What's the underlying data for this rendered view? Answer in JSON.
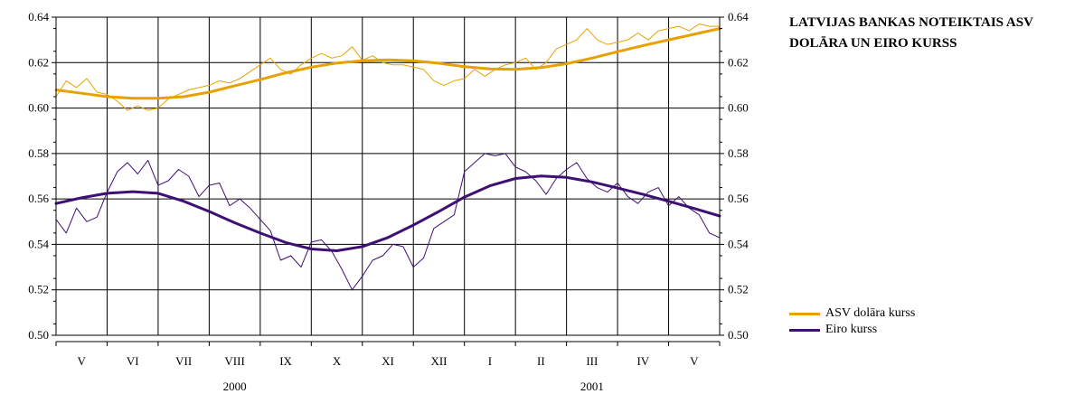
{
  "chart_data": {
    "type": "line",
    "title": "LATVIJAS BANKAS NOTEIKTAIS ASV DOLĀRA UN EIRO KURSS",
    "ylim": [
      0.5,
      0.64
    ],
    "yticks": [
      "0.50",
      "0.52",
      "0.54",
      "0.56",
      "0.58",
      "0.60",
      "0.62",
      "0.64"
    ],
    "y_axis_both_sides": true,
    "grid": true,
    "legend_position": "right",
    "x_month_labels": [
      "V",
      "VI",
      "VII",
      "VIII",
      "IX",
      "X",
      "XI",
      "XII",
      "I",
      "II",
      "III",
      "IV",
      "V"
    ],
    "x_year_labels": [
      {
        "label": "2000",
        "month_index": 3.5
      },
      {
        "label": "2001",
        "month_index": 10.5
      }
    ],
    "x_unit": "month index (0 = start of May 2000)",
    "series": [
      {
        "name": "ASV dolāra kurss",
        "color": "#E8A200",
        "daily_x": [
          0,
          0.2,
          0.4,
          0.6,
          0.8,
          1,
          1.2,
          1.4,
          1.6,
          1.8,
          2,
          2.2,
          2.4,
          2.6,
          2.8,
          3,
          3.2,
          3.4,
          3.6,
          3.8,
          4,
          4.2,
          4.4,
          4.6,
          4.8,
          5,
          5.2,
          5.4,
          5.6,
          5.8,
          6,
          6.2,
          6.4,
          6.6,
          6.8,
          7,
          7.2,
          7.4,
          7.6,
          7.8,
          8,
          8.2,
          8.4,
          8.6,
          8.8,
          9,
          9.2,
          9.4,
          9.6,
          9.8,
          10,
          10.2,
          10.4,
          10.6,
          10.8,
          11,
          11.2,
          11.4,
          11.6,
          11.8,
          12,
          12.2,
          12.4,
          12.6,
          12.8,
          13
        ],
        "daily_values": [
          0.605,
          0.612,
          0.609,
          0.613,
          0.607,
          0.606,
          0.603,
          0.599,
          0.601,
          0.599,
          0.6,
          0.604,
          0.606,
          0.608,
          0.609,
          0.61,
          0.612,
          0.611,
          0.613,
          0.616,
          0.619,
          0.622,
          0.617,
          0.615,
          0.619,
          0.622,
          0.624,
          0.622,
          0.623,
          0.627,
          0.621,
          0.623,
          0.62,
          0.619,
          0.619,
          0.618,
          0.617,
          0.612,
          0.61,
          0.612,
          0.613,
          0.617,
          0.614,
          0.617,
          0.619,
          0.62,
          0.622,
          0.617,
          0.62,
          0.626,
          0.628,
          0.63,
          0.635,
          0.63,
          0.628,
          0.629,
          0.63,
          0.633,
          0.63,
          0.634,
          0.635,
          0.636,
          0.634,
          0.637,
          0.636,
          0.636
        ],
        "trend_x": [
          0,
          0.5,
          1,
          1.5,
          2,
          2.5,
          3,
          3.5,
          4,
          4.5,
          5,
          5.5,
          6,
          6.5,
          7,
          7.5,
          8,
          8.5,
          9,
          9.5,
          10,
          10.5,
          11,
          11.5,
          12,
          12.5,
          13
        ],
        "trend_values": [
          0.608,
          0.6065,
          0.605,
          0.6043,
          0.6043,
          0.605,
          0.607,
          0.6098,
          0.6125,
          0.6155,
          0.618,
          0.6198,
          0.6208,
          0.6212,
          0.6208,
          0.6197,
          0.6182,
          0.6172,
          0.617,
          0.6178,
          0.6195,
          0.622,
          0.6248,
          0.6275,
          0.63,
          0.6325,
          0.635
        ]
      },
      {
        "name": "Eiro kurss",
        "color": "#3F1073",
        "daily_x": [
          0,
          0.2,
          0.4,
          0.6,
          0.8,
          1,
          1.2,
          1.4,
          1.6,
          1.8,
          2,
          2.2,
          2.4,
          2.6,
          2.8,
          3,
          3.2,
          3.4,
          3.6,
          3.8,
          4,
          4.2,
          4.4,
          4.6,
          4.8,
          5,
          5.2,
          5.4,
          5.6,
          5.8,
          6,
          6.2,
          6.4,
          6.6,
          6.8,
          7,
          7.2,
          7.4,
          7.6,
          7.8,
          8,
          8.2,
          8.4,
          8.6,
          8.8,
          9,
          9.2,
          9.4,
          9.6,
          9.8,
          10,
          10.2,
          10.4,
          10.6,
          10.8,
          11,
          11.2,
          11.4,
          11.6,
          11.8,
          12,
          12.2,
          12.4,
          12.6,
          12.8,
          13
        ],
        "daily_values": [
          0.551,
          0.545,
          0.556,
          0.55,
          0.552,
          0.563,
          0.572,
          0.576,
          0.571,
          0.577,
          0.566,
          0.568,
          0.573,
          0.57,
          0.561,
          0.566,
          0.567,
          0.557,
          0.56,
          0.556,
          0.551,
          0.546,
          0.533,
          0.535,
          0.53,
          0.541,
          0.542,
          0.537,
          0.529,
          0.52,
          0.526,
          0.533,
          0.535,
          0.54,
          0.539,
          0.53,
          0.534,
          0.547,
          0.55,
          0.553,
          0.572,
          0.576,
          0.58,
          0.579,
          0.58,
          0.574,
          0.572,
          0.568,
          0.562,
          0.569,
          0.573,
          0.576,
          0.569,
          0.565,
          0.563,
          0.567,
          0.561,
          0.558,
          0.563,
          0.565,
          0.557,
          0.561,
          0.556,
          0.553,
          0.545,
          0.543
        ],
        "trend_x": [
          0,
          0.5,
          1,
          1.5,
          2,
          2.5,
          3,
          3.5,
          4,
          4.5,
          5,
          5.5,
          6,
          6.5,
          7,
          7.5,
          8,
          8.5,
          9,
          9.5,
          10,
          10.5,
          11,
          11.5,
          12,
          12.5,
          13
        ],
        "trend_values": [
          0.558,
          0.5605,
          0.5625,
          0.5632,
          0.5625,
          0.559,
          0.5545,
          0.5495,
          0.545,
          0.5408,
          0.538,
          0.5372,
          0.539,
          0.543,
          0.5485,
          0.5545,
          0.5608,
          0.5658,
          0.569,
          0.5701,
          0.5695,
          0.5675,
          0.5648,
          0.562,
          0.559,
          0.5558,
          0.5525
        ]
      }
    ]
  }
}
